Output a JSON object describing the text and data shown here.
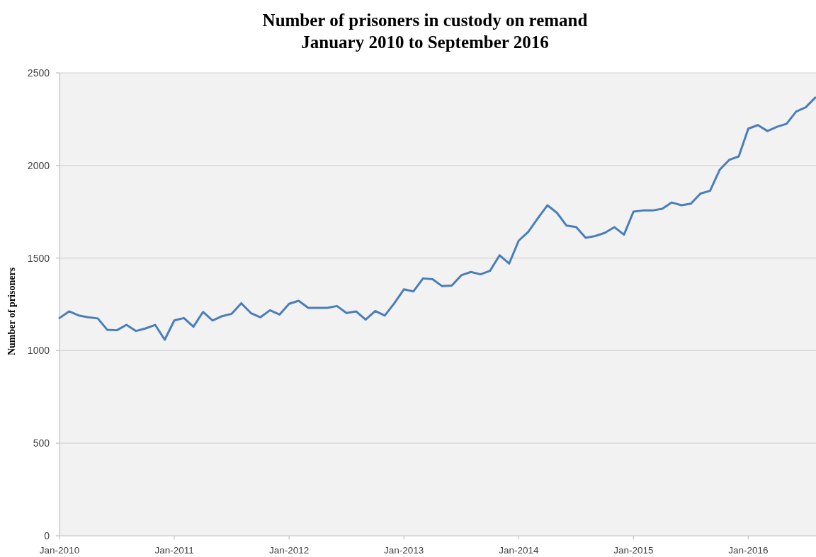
{
  "chart_data": {
    "type": "line",
    "title": "Number of prisoners in custody on remand",
    "subtitle": "January 2010 to September 2016",
    "ylabel": "Number of prisoners",
    "categories": [
      "Jan-2010",
      null,
      null,
      null,
      null,
      null,
      null,
      null,
      null,
      null,
      null,
      null,
      "Jan-2011",
      null,
      null,
      null,
      null,
      null,
      null,
      null,
      null,
      null,
      null,
      null,
      "Jan-2012",
      null,
      null,
      null,
      null,
      null,
      null,
      null,
      null,
      null,
      null,
      null,
      "Jan-2013",
      null,
      null,
      null,
      null,
      null,
      null,
      null,
      null,
      null,
      null,
      null,
      "Jan-2014",
      null,
      null,
      null,
      null,
      null,
      null,
      null,
      null,
      null,
      null,
      null,
      "Jan-2015",
      null,
      null,
      null,
      null,
      null,
      null,
      null,
      null,
      null,
      null,
      null,
      "Jan-2016",
      null,
      null,
      null,
      null,
      null,
      null,
      null
    ],
    "series": [
      {
        "color": "#4a7ebb",
        "values": [
          1176,
          1212,
          1190,
          1180,
          1174,
          1112,
          1110,
          1139,
          1106,
          1120,
          1139,
          1059,
          1163,
          1176,
          1129,
          1209,
          1163,
          1186,
          1199,
          1256,
          1203,
          1180,
          1218,
          1195,
          1253,
          1269,
          1231,
          1231,
          1231,
          1241,
          1203,
          1212,
          1167,
          1214,
          1189,
          1256,
          1331,
          1320,
          1390,
          1386,
          1348,
          1351,
          1407,
          1425,
          1412,
          1431,
          1515,
          1470,
          1594,
          1641,
          1715,
          1785,
          1744,
          1675,
          1668,
          1609,
          1619,
          1636,
          1667,
          1626,
          1751,
          1757,
          1757,
          1766,
          1800,
          1785,
          1794,
          1848,
          1863,
          1976,
          2030,
          2049,
          2199,
          2218,
          2186,
          2209,
          2225,
          2291,
          2314,
          2367
        ]
      }
    ],
    "ylim": [
      0,
      2500
    ],
    "yticks": [
      0,
      500,
      1000,
      1500,
      2000,
      2500
    ],
    "grid": "y"
  }
}
